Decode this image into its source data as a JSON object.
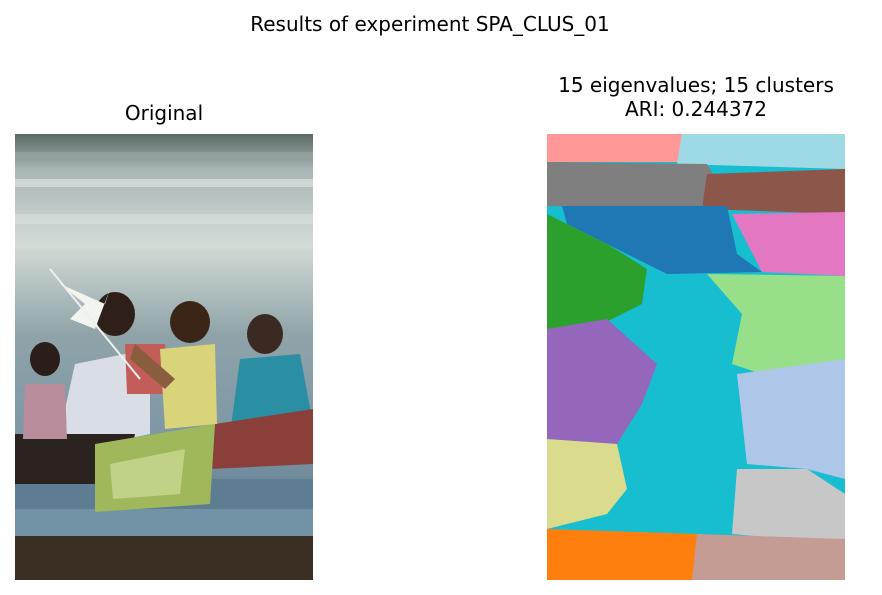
{
  "figure": {
    "suptitle": "Results of experiment SPA_CLUS_01",
    "left_title": "Original",
    "right_title_line1": "15 eigenvalues; 15 clusters",
    "right_title_line2": "ARI: 0.244372"
  },
  "chart_data": {
    "type": "image-segmentation",
    "title": "Results of experiment SPA_CLUS_01",
    "panels": [
      {
        "title": "Original",
        "content": "photograph"
      },
      {
        "title": "15 eigenvalues; 15 clusters\nARI: 0.244372",
        "content": "cluster label map"
      }
    ],
    "experiment": "SPA_CLUS_01",
    "eigenvalues": 15,
    "clusters": 15,
    "ari": 0.244372,
    "axes": "off",
    "cluster_colors": [
      "#ff9896",
      "#9edae5",
      "#7f7f7f",
      "#8c564b",
      "#1f77b4",
      "#e377c2",
      "#2ca02c",
      "#98df8a",
      "#17becf",
      "#9467bd",
      "#aec7e8",
      "#dbdb8d",
      "#c7c7c7",
      "#ff7f0e",
      "#c49c94"
    ]
  }
}
